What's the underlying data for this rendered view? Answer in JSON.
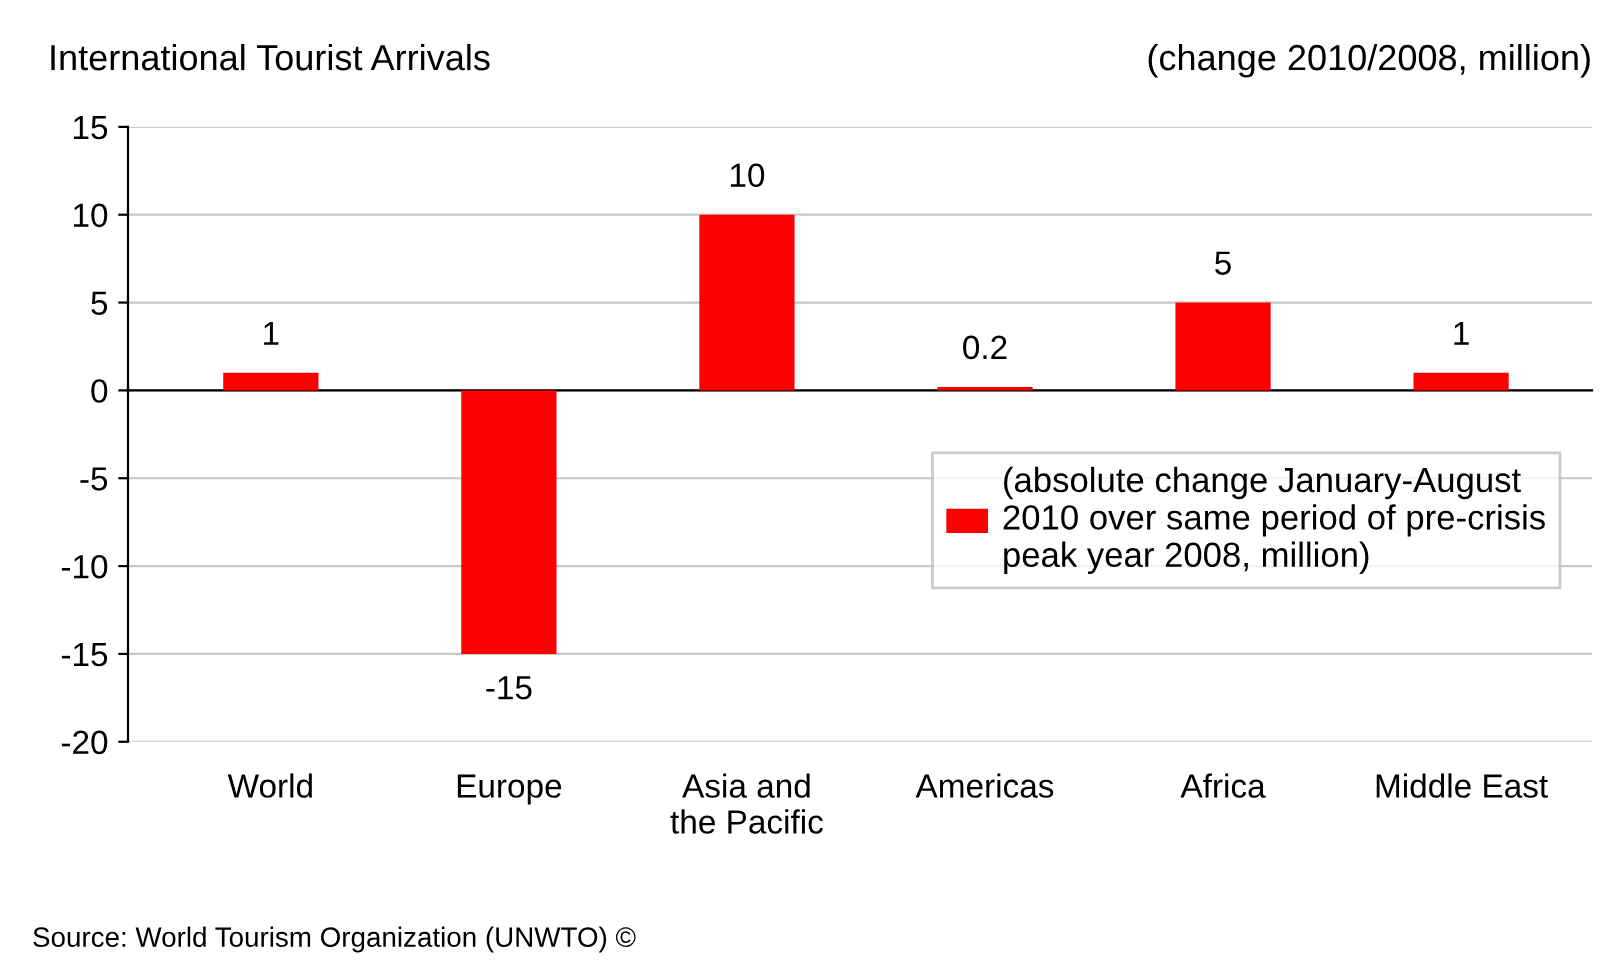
{
  "chart_data": {
    "type": "bar",
    "title": "International Tourist Arrivals",
    "subtitle": "(change 2010/2008, million)",
    "categories": [
      "World",
      "Europe",
      "Asia and\nthe Pacific",
      "Americas",
      "Africa",
      "Middle East"
    ],
    "series": [
      {
        "name": "(absolute change January-August\n2010 over same period of pre-crisis\npeak year 2008, million)",
        "color": "#ff0000",
        "values": [
          1,
          -15,
          10,
          0.2,
          5,
          1
        ]
      }
    ],
    "ylim": [
      -20,
      15
    ],
    "yticks": [
      -20,
      -15,
      -10,
      -5,
      0,
      5,
      10,
      15
    ],
    "grid": "y",
    "legend": "right",
    "data_labels": true,
    "annotations": [
      "Source: World Tourism Organization (UNWTO) ©"
    ]
  }
}
